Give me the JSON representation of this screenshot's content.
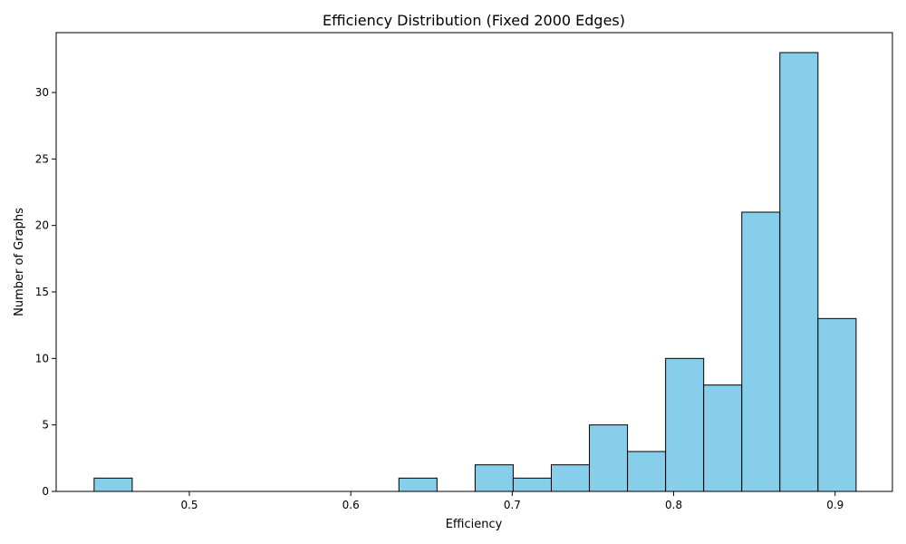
{
  "chart_data": {
    "type": "bar",
    "title": "Efficiency Distribution (Fixed 2000 Edges)",
    "xlabel": "Efficiency",
    "ylabel": "Number of Graphs",
    "xlim": [
      0.4175,
      0.9355
    ],
    "ylim": [
      0,
      34.5
    ],
    "xticks": [
      0.5,
      0.6,
      0.7,
      0.8,
      0.9
    ],
    "xtick_labels": [
      "0.5",
      "0.6",
      "0.7",
      "0.8",
      "0.9"
    ],
    "yticks": [
      0,
      5,
      10,
      15,
      20,
      25,
      30
    ],
    "ytick_labels": [
      "0",
      "5",
      "10",
      "15",
      "20",
      "25",
      "30"
    ],
    "bin_edges": [
      0.441,
      0.4646,
      0.4882,
      0.5118,
      0.5354,
      0.559,
      0.5826,
      0.6062,
      0.6298,
      0.6534,
      0.677,
      0.7006,
      0.7242,
      0.7478,
      0.7714,
      0.795,
      0.8186,
      0.8422,
      0.8658,
      0.8894,
      0.913
    ],
    "counts": [
      1,
      0,
      0,
      0,
      0,
      0,
      0,
      0,
      1,
      0,
      2,
      1,
      2,
      5,
      3,
      10,
      8,
      21,
      33,
      13
    ],
    "bar_color": "#87CEEB",
    "edge_color": "#000000",
    "grid": false,
    "legend": "none"
  }
}
